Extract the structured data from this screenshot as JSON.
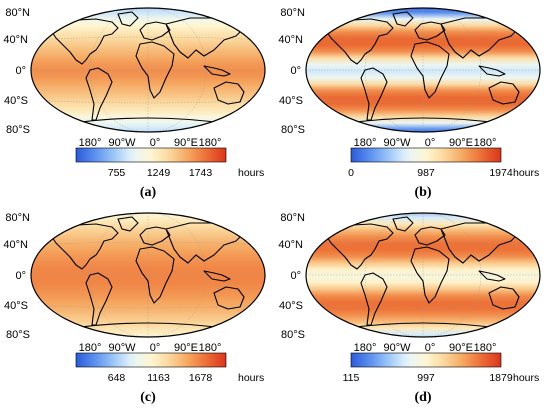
{
  "colormap": [
    "#2a5bd9",
    "#5b8ff0",
    "#9cc6f7",
    "#e7f6fb",
    "#fff6d2",
    "#fbd79c",
    "#f5a55e",
    "#ec6b33",
    "#d9351f"
  ],
  "land_color": "#000000",
  "panels": [
    {
      "id": "a",
      "label": "(a)",
      "lat_labels": [
        "80°N",
        "40°N",
        "0°",
        "40°S",
        "80°S"
      ],
      "lon_labels": [
        "180°",
        "90°W",
        "0°",
        "90°E",
        "180°"
      ],
      "colorbar_ticks": [
        "755",
        "1249",
        "1743"
      ],
      "colorbar_tick_fractions": [
        0.27,
        0.55,
        0.83
      ],
      "unit": "hours",
      "lat_profile": [
        0.28,
        0.33,
        0.42,
        0.5,
        0.56,
        0.61,
        0.66,
        0.7,
        0.74,
        0.78,
        0.8,
        0.78,
        0.74,
        0.7,
        0.66,
        0.61,
        0.56,
        0.48,
        0.4,
        0.33,
        0.28
      ]
    },
    {
      "id": "b",
      "label": "(b)",
      "lat_labels": [
        "80°N",
        "40°N",
        "0°",
        "40°S",
        "80°S"
      ],
      "lon_labels": [
        "180°",
        "90°W",
        "0°",
        "90°E",
        "180°"
      ],
      "colorbar_ticks": [
        "0",
        "987",
        "1974"
      ],
      "colorbar_tick_fractions": [
        0.0,
        0.5,
        1.0
      ],
      "unit": "hours",
      "lat_profile": [
        0.02,
        0.12,
        0.4,
        0.62,
        0.8,
        0.88,
        0.88,
        0.8,
        0.6,
        0.4,
        0.34,
        0.4,
        0.6,
        0.8,
        0.88,
        0.88,
        0.8,
        0.62,
        0.4,
        0.12,
        0.02
      ]
    },
    {
      "id": "c",
      "label": "(c)",
      "lat_labels": [
        "80°N",
        "40°N",
        "0°",
        "40°S",
        "80°S"
      ],
      "lon_labels": [
        "180°",
        "90°W",
        "0°",
        "90°E",
        "180°"
      ],
      "colorbar_ticks": [
        "648",
        "1163",
        "1678"
      ],
      "colorbar_tick_fractions": [
        0.27,
        0.55,
        0.83
      ],
      "unit": "hours",
      "lat_profile": [
        0.45,
        0.52,
        0.58,
        0.64,
        0.68,
        0.72,
        0.75,
        0.78,
        0.8,
        0.82,
        0.82,
        0.82,
        0.8,
        0.78,
        0.75,
        0.72,
        0.68,
        0.64,
        0.58,
        0.52,
        0.45
      ]
    },
    {
      "id": "d",
      "label": "(d)",
      "lat_labels": [
        "80°N",
        "40°N",
        "0°",
        "40°S",
        "80°S"
      ],
      "lon_labels": [
        "180°",
        "90°W",
        "0°",
        "90°E",
        "180°"
      ],
      "colorbar_ticks": [
        "115",
        "997",
        "1879"
      ],
      "colorbar_tick_fractions": [
        0.0,
        0.5,
        1.0
      ],
      "unit": "hours",
      "lat_profile": [
        0.2,
        0.35,
        0.55,
        0.7,
        0.8,
        0.86,
        0.86,
        0.8,
        0.66,
        0.52,
        0.46,
        0.52,
        0.66,
        0.8,
        0.86,
        0.86,
        0.8,
        0.7,
        0.55,
        0.35,
        0.2
      ]
    }
  ]
}
